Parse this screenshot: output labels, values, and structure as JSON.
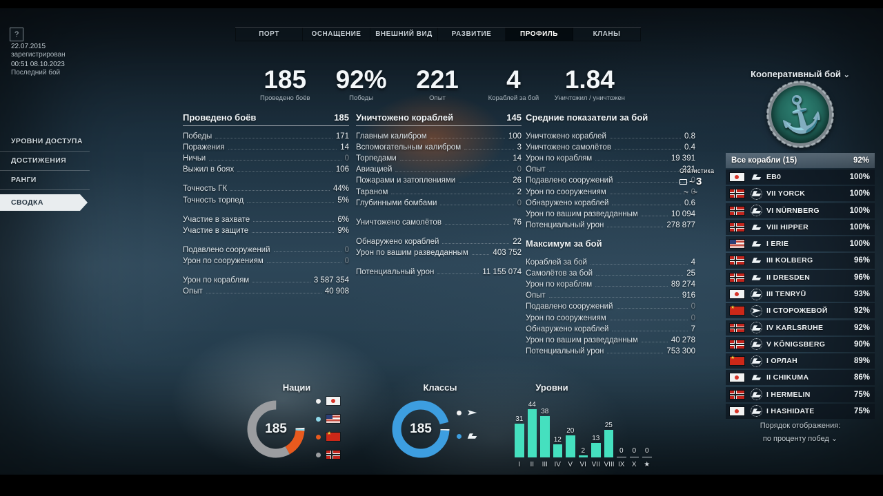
{
  "account": {
    "help": "?",
    "registered_date": "22.07.2015",
    "registered_label": "зарегистрирован",
    "last_battle_time": "00:51  08.10.2023",
    "last_battle_label": "Последний бой"
  },
  "tabs": [
    {
      "label": "ПОРТ",
      "active": false
    },
    {
      "label": "ОСНАЩЕНИЕ",
      "active": false
    },
    {
      "label": "ВНЕШНИЙ ВИД",
      "active": false
    },
    {
      "label": "РАЗВИТИЕ",
      "active": false
    },
    {
      "label": "ПРОФИЛЬ",
      "active": true
    },
    {
      "label": "КЛАНЫ",
      "active": false
    }
  ],
  "sidebar": {
    "items": [
      {
        "label": "УРОВНИ ДОСТУПА",
        "active": false
      },
      {
        "label": "ДОСТИЖЕНИЯ",
        "active": false
      },
      {
        "label": "РАНГИ",
        "active": false
      },
      {
        "label": "СВОДКА",
        "active": true
      }
    ]
  },
  "summary_stats": [
    {
      "value": "185",
      "label": "Проведено боёв"
    },
    {
      "value": "92%",
      "label": "Победы"
    },
    {
      "value": "221",
      "label": "Опыт"
    },
    {
      "value": "4",
      "label": "Кораблей за бой"
    },
    {
      "value": "1.84",
      "label": "Уничтожил / уничтожен"
    }
  ],
  "battles_column": {
    "header": {
      "label": "Проведено боёв",
      "value": "185"
    },
    "groups": [
      [
        [
          "Победы",
          "171"
        ],
        [
          "Поражения",
          "14"
        ],
        [
          "Ничьи",
          "0"
        ],
        [
          "Выжил в боях",
          "106"
        ]
      ],
      [
        [
          "Точность ГК",
          "44%"
        ],
        [
          "Точность торпед",
          "5%"
        ]
      ],
      [
        [
          "Участие в захвате",
          "6%"
        ],
        [
          "Участие в защите",
          "9%"
        ]
      ],
      [
        [
          "Подавлено сооружений",
          "0"
        ],
        [
          "Урон по сооружениям",
          "0"
        ]
      ],
      [
        [
          "Урон по кораблям",
          "3 587 354"
        ],
        [
          "Опыт",
          "40 908"
        ]
      ]
    ]
  },
  "destroyed_column": {
    "header": {
      "label": "Уничтожено кораблей",
      "value": "145"
    },
    "groups": [
      [
        [
          "Главным калибром",
          "100"
        ],
        [
          "Вспомогательным калибром",
          "3"
        ],
        [
          "Торпедами",
          "14"
        ],
        [
          "Авиацией",
          "0"
        ],
        [
          "Пожарами и затоплениями",
          "26"
        ],
        [
          "Тараном",
          "2"
        ],
        [
          "Глубинными бомбами",
          "0"
        ]
      ],
      [
        [
          "Уничтожено самолётов",
          "76"
        ]
      ],
      [
        [
          "Обнаружено кораблей",
          "22"
        ],
        [
          "Урон по вашим разведданным",
          "403 752"
        ]
      ],
      [
        [
          "Потенциальный урон",
          "11 155 074"
        ]
      ]
    ]
  },
  "averages_column": {
    "header": {
      "label": "Средние показатели за бой",
      "value": ""
    },
    "groups": [
      [
        [
          "Уничтожено кораблей",
          "0.8"
        ],
        [
          "Уничтожено самолётов",
          "0.4"
        ],
        [
          "Урон по кораблям",
          "19 391"
        ],
        [
          "Опыт",
          "221"
        ],
        [
          "Подавлено сооружений",
          "0"
        ],
        [
          "Урон по сооружениям",
          "0"
        ],
        [
          "Обнаружено кораблей",
          "0.6"
        ],
        [
          "Урон по вашим разведданным",
          "10 094"
        ],
        [
          "Потенциальный урон",
          "278 877"
        ]
      ]
    ]
  },
  "maximum_column": {
    "header": {
      "label": "Максимум за бой",
      "value": ""
    },
    "groups": [
      [
        [
          "Кораблей за бой",
          "4"
        ],
        [
          "Самолётов за бой",
          "25"
        ],
        [
          "Урон по кораблям",
          "89 274"
        ],
        [
          "Опыт",
          "916"
        ],
        [
          "Подавлено сооружений",
          "0"
        ],
        [
          "Урон по сооружениям",
          "0"
        ],
        [
          "Обнаружено кораблей",
          "7"
        ],
        [
          "Урон по вашим разведданным",
          "40 278"
        ],
        [
          "Потенциальный урон",
          "753 300"
        ]
      ]
    ]
  },
  "mode_panel": {
    "title": "Кооперативный бой",
    "dropdown_arrow": "⌄",
    "all_ships_label": "Все корабли (15)",
    "all_ships_percent": "92%",
    "ships": [
      {
        "flag": "japan",
        "class": "cruiser",
        "elite": false,
        "name": "ЕВ0",
        "percent": "100%"
      },
      {
        "flag": "germany",
        "class": "cruiser",
        "elite": true,
        "name": "VII YORCK",
        "percent": "100%"
      },
      {
        "flag": "germany",
        "class": "cruiser",
        "elite": true,
        "name": "VI NÜRNBERG",
        "percent": "100%"
      },
      {
        "flag": "germany",
        "class": "cruiser",
        "elite": false,
        "name": "VIII HIPPER",
        "percent": "100%"
      },
      {
        "flag": "usa",
        "class": "cruiser",
        "elite": false,
        "name": "I ERIE",
        "percent": "100%"
      },
      {
        "flag": "germany",
        "class": "cruiser",
        "elite": false,
        "name": "III KOLBERG",
        "percent": "96%"
      },
      {
        "flag": "germany",
        "class": "cruiser",
        "elite": false,
        "name": "II DRESDEN",
        "percent": "96%"
      },
      {
        "flag": "japan",
        "class": "cruiser",
        "elite": true,
        "name": "III TENRYŪ",
        "percent": "93%"
      },
      {
        "flag": "ussr",
        "class": "destroyer",
        "elite": true,
        "name": "II СТОРОЖЕВОЙ",
        "percent": "92%"
      },
      {
        "flag": "germany",
        "class": "cruiser",
        "elite": true,
        "name": "IV KARLSRUHE",
        "percent": "92%"
      },
      {
        "flag": "germany",
        "class": "cruiser",
        "elite": true,
        "name": "V KÖNIGSBERG",
        "percent": "90%"
      },
      {
        "flag": "ussr",
        "class": "cruiser",
        "elite": true,
        "name": "I ОРЛАН",
        "percent": "89%"
      },
      {
        "flag": "japan",
        "class": "cruiser",
        "elite": false,
        "name": "II CHIKUMA",
        "percent": "86%"
      },
      {
        "flag": "germany",
        "class": "cruiser",
        "elite": true,
        "name": "I HERMELIN",
        "percent": "75%"
      },
      {
        "flag": "japan",
        "class": "cruiser",
        "elite": true,
        "name": "I HASHIDATE",
        "percent": "75%"
      }
    ],
    "footer_line1": "Порядок отображения:",
    "footer_line2": "по проценту побед",
    "sort_arrow": "⌄"
  },
  "stream_overlay": {
    "label": "Статистика",
    "count": "3"
  },
  "chart_data": [
    {
      "type": "pie",
      "title": "Нации",
      "center_label": "185",
      "legend": [
        "japan-flag",
        "usa-flag",
        "ussr-flag",
        "germany-flag"
      ],
      "segments": [
        {
          "name": "japan",
          "percent": 24,
          "color": "#f2f2f2",
          "dot": "#f2f2f2"
        },
        {
          "name": "usa",
          "percent": 2,
          "color": "#8fd8ea",
          "dot": "#8fd8ea"
        },
        {
          "name": "ussr",
          "percent": 16,
          "color": "#e85a1e",
          "dot": "#e85a1e"
        },
        {
          "name": "germany",
          "percent": 58,
          "color": "#9b9da0",
          "dot": "#9b9da0"
        }
      ],
      "rotation": 0
    },
    {
      "type": "pie",
      "title": "Классы",
      "center_label": "185",
      "legend": [
        "destroyer-icon",
        "cruiser-icon"
      ],
      "segments": [
        {
          "name": "destroyer",
          "percent": 5,
          "color": "#eef0f1",
          "dot": "#f2f2f2"
        },
        {
          "name": "cruiser",
          "percent": 95,
          "color": "#3d9ee0",
          "dot": "#3d9ee0"
        }
      ],
      "rotation": 75
    },
    {
      "type": "bar",
      "title": "Уровни",
      "categories": [
        "I",
        "II",
        "III",
        "IV",
        "V",
        "VI",
        "VII",
        "VIII",
        "IX",
        "X",
        "★"
      ],
      "values": [
        31,
        44,
        38,
        12,
        20,
        2,
        13,
        25,
        0,
        0,
        0
      ],
      "color": "#45e0bf",
      "ylim": [
        0,
        44
      ]
    }
  ]
}
